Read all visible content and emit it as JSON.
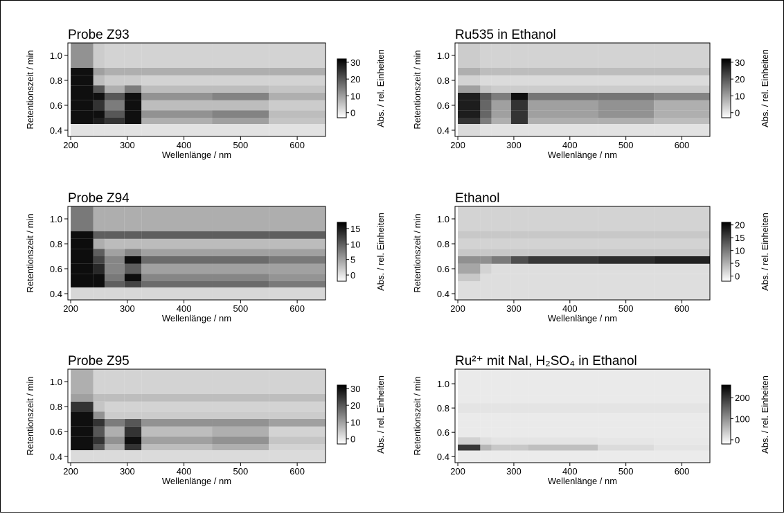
{
  "chart_data": [
    {
      "type": "heatmap",
      "title": "Probe Z93",
      "xlabel": "Wellenlänge / nm",
      "ylabel": "Retentionszeit / min",
      "zlabel": "Abs. / rel. Einheiten",
      "xlim": [
        195,
        650
      ],
      "ylim": [
        0.35,
        1.1
      ],
      "xticks": [
        200,
        300,
        400,
        500,
        600
      ],
      "yticks": [
        0.4,
        0.6,
        0.8,
        {
          "value": 1,
          "label": "1.0"
        }
      ],
      "zlim": [
        -3,
        32
      ],
      "zticks": [
        0,
        10,
        20,
        30
      ],
      "x": [
        200,
        240,
        260,
        295,
        325,
        450,
        550,
        650
      ],
      "y": [
        0.35,
        0.45,
        0.5,
        0.56,
        0.64,
        0.7,
        0.76,
        0.84,
        0.9,
        1.1
      ],
      "z": [
        [
          1,
          1,
          1,
          1,
          1,
          1,
          1
        ],
        [
          30,
          28,
          25,
          30,
          8,
          10,
          5
        ],
        [
          30,
          30,
          20,
          30,
          12,
          14,
          6
        ],
        [
          30,
          25,
          15,
          30,
          6,
          6,
          4
        ],
        [
          30,
          30,
          20,
          30,
          12,
          14,
          8
        ],
        [
          30,
          20,
          8,
          15,
          6,
          6,
          5
        ],
        [
          30,
          6,
          4,
          4,
          3,
          3,
          3
        ],
        [
          30,
          10,
          8,
          8,
          8,
          8,
          8
        ],
        [
          12,
          4,
          3,
          3,
          3,
          3,
          3
        ]
      ]
    },
    {
      "type": "heatmap",
      "title": "Ru535 in Ethanol",
      "xlabel": "Wellenlänge / nm",
      "ylabel": "Retentionszeit / min",
      "zlabel": "Abs. / rel. Einheiten",
      "xlim": [
        195,
        650
      ],
      "ylim": [
        0.35,
        1.1
      ],
      "xticks": [
        200,
        300,
        400,
        500,
        600
      ],
      "yticks": [
        0.4,
        0.6,
        0.8,
        {
          "value": 1,
          "label": "1.0"
        }
      ],
      "zlim": [
        -3,
        32
      ],
      "zticks": [
        0,
        10,
        20,
        30
      ],
      "x": [
        200,
        240,
        260,
        295,
        325,
        450,
        550,
        650
      ],
      "y": [
        0.35,
        0.45,
        0.5,
        0.56,
        0.64,
        0.7,
        0.76,
        0.84,
        0.9,
        1.1
      ],
      "z": [
        [
          2,
          1,
          1,
          1,
          1,
          1,
          1
        ],
        [
          25,
          15,
          8,
          25,
          8,
          8,
          6
        ],
        [
          28,
          18,
          10,
          25,
          10,
          12,
          8
        ],
        [
          28,
          18,
          10,
          25,
          10,
          12,
          8
        ],
        [
          28,
          20,
          15,
          30,
          16,
          16,
          14
        ],
        [
          10,
          5,
          4,
          4,
          4,
          4,
          4
        ],
        [
          3,
          2,
          2,
          2,
          2,
          2,
          2
        ],
        [
          8,
          6,
          6,
          6,
          6,
          6,
          6
        ],
        [
          4,
          3,
          3,
          3,
          3,
          3,
          3
        ]
      ]
    },
    {
      "type": "heatmap",
      "title": "Probe Z94",
      "xlabel": "Wellenlänge / nm",
      "ylabel": "Retentionszeit / min",
      "zlabel": "Abs. / rel. Einheiten",
      "xlim": [
        195,
        650
      ],
      "ylim": [
        0.35,
        1.1
      ],
      "xticks": [
        200,
        300,
        400,
        500,
        600
      ],
      "yticks": [
        0.4,
        0.6,
        0.8,
        {
          "value": 1,
          "label": "1.0"
        }
      ],
      "zlim": [
        -2,
        17
      ],
      "zticks": [
        0,
        5,
        10,
        15
      ],
      "x": [
        200,
        240,
        260,
        295,
        325,
        450,
        550,
        650
      ],
      "y": [
        0.35,
        0.45,
        0.5,
        0.56,
        0.64,
        0.7,
        0.76,
        0.84,
        0.9,
        1.1
      ],
      "z": [
        [
          1,
          1,
          1,
          1,
          1,
          1,
          1
        ],
        [
          16,
          16,
          10,
          12,
          9,
          9,
          8
        ],
        [
          16,
          16,
          8,
          16,
          7,
          7,
          6
        ],
        [
          16,
          14,
          7,
          10,
          5,
          5,
          5
        ],
        [
          16,
          12,
          7,
          16,
          9,
          9,
          8
        ],
        [
          16,
          10,
          5,
          7,
          5,
          5,
          5
        ],
        [
          16,
          4,
          3,
          3,
          3,
          3,
          3
        ],
        [
          16,
          10,
          10,
          10,
          10,
          10,
          10
        ],
        [
          8,
          4,
          4,
          4,
          4,
          4,
          4
        ]
      ]
    },
    {
      "type": "heatmap",
      "title": "Ethanol",
      "xlabel": "Wellenlänge / nm",
      "ylabel": "Retentionszeit / min",
      "zlabel": "Abs. / rel. Einheiten",
      "xlim": [
        195,
        650
      ],
      "ylim": [
        0.35,
        1.1
      ],
      "xticks": [
        200,
        300,
        400,
        500,
        600
      ],
      "yticks": [
        0.4,
        0.6,
        0.8,
        {
          "value": 1,
          "label": "1.0"
        }
      ],
      "zlim": [
        -2,
        21
      ],
      "zticks": [
        0,
        5,
        10,
        15,
        20
      ],
      "x": [
        200,
        240,
        260,
        295,
        325,
        450,
        550,
        650
      ],
      "y": [
        0.35,
        0.45,
        0.5,
        0.56,
        0.64,
        0.7,
        0.76,
        0.84,
        0.9,
        1.1
      ],
      "z": [
        [
          1,
          1,
          1,
          1,
          1,
          1,
          1
        ],
        [
          1,
          1,
          1,
          1,
          1,
          1,
          1
        ],
        [
          3,
          1,
          1,
          1,
          1,
          1,
          1
        ],
        [
          6,
          2,
          1,
          1,
          1,
          1,
          1
        ],
        [
          8,
          8,
          10,
          14,
          16,
          17,
          18
        ],
        [
          3,
          3,
          3,
          3,
          3,
          3,
          3
        ],
        [
          2,
          2,
          2,
          2,
          2,
          2,
          2
        ],
        [
          3,
          3,
          3,
          3,
          3,
          3,
          3
        ],
        [
          2,
          2,
          2,
          2,
          2,
          2,
          2
        ]
      ]
    },
    {
      "type": "heatmap",
      "title": "Probe Z95",
      "xlabel": "Wellenlänge / nm",
      "ylabel": "Retentionszeit / min",
      "zlabel": "Abs. / rel. Einheiten",
      "xlim": [
        195,
        650
      ],
      "ylim": [
        0.35,
        1.1
      ],
      "xticks": [
        200,
        300,
        400,
        500,
        600
      ],
      "yticks": [
        0.4,
        0.6,
        0.8,
        {
          "value": 1,
          "label": "1.0"
        }
      ],
      "zlim": [
        -3,
        32
      ],
      "zticks": [
        0,
        10,
        20,
        30
      ],
      "x": [
        200,
        240,
        260,
        295,
        325,
        450,
        550,
        650
      ],
      "y": [
        0.35,
        0.45,
        0.5,
        0.56,
        0.64,
        0.7,
        0.76,
        0.84,
        0.9,
        1.1
      ],
      "z": [
        [
          2,
          2,
          2,
          2,
          2,
          2,
          2
        ],
        [
          30,
          20,
          8,
          25,
          6,
          8,
          3
        ],
        [
          30,
          25,
          12,
          30,
          10,
          12,
          5
        ],
        [
          30,
          20,
          8,
          25,
          6,
          8,
          3
        ],
        [
          30,
          25,
          15,
          20,
          12,
          12,
          10
        ],
        [
          30,
          12,
          4,
          4,
          4,
          4,
          4
        ],
        [
          25,
          5,
          3,
          3,
          3,
          3,
          3
        ],
        [
          10,
          6,
          6,
          6,
          6,
          6,
          6
        ],
        [
          8,
          3,
          3,
          3,
          3,
          3,
          3
        ]
      ]
    },
    {
      "type": "heatmap",
      "title": "Ru²⁺ mit NaI, H₂SO₄ in Ethanol",
      "xlabel": "Wellenlänge / nm",
      "ylabel": "Retentionszeit / min",
      "zlabel": "Abs. / rel. Einheiten",
      "xlim": [
        195,
        650
      ],
      "ylim": [
        0.35,
        1.12
      ],
      "xticks": [
        200,
        300,
        400,
        500,
        600
      ],
      "yticks": [
        0.4,
        0.6,
        0.8,
        {
          "value": 1,
          "label": "1.0"
        }
      ],
      "zlim": [
        -20,
        260
      ],
      "zticks": [
        0,
        100,
        200
      ],
      "x": [
        200,
        240,
        260,
        295,
        325,
        450,
        550,
        650
      ],
      "y": [
        0.35,
        0.45,
        0.5,
        0.56,
        0.64,
        0.7,
        0.76,
        0.84,
        0.9,
        1.12
      ],
      "z": [
        [
          2,
          2,
          2,
          2,
          2,
          2,
          2
        ],
        [
          200,
          60,
          40,
          40,
          50,
          20,
          10
        ],
        [
          30,
          15,
          10,
          10,
          10,
          8,
          5
        ],
        [
          3,
          3,
          3,
          3,
          3,
          3,
          3
        ],
        [
          3,
          3,
          3,
          3,
          3,
          3,
          3
        ],
        [
          3,
          3,
          3,
          3,
          3,
          3,
          3
        ],
        [
          10,
          10,
          10,
          10,
          10,
          10,
          10
        ],
        [
          3,
          3,
          3,
          3,
          3,
          3,
          3
        ],
        [
          3,
          3,
          3,
          3,
          3,
          3,
          3
        ]
      ]
    }
  ]
}
